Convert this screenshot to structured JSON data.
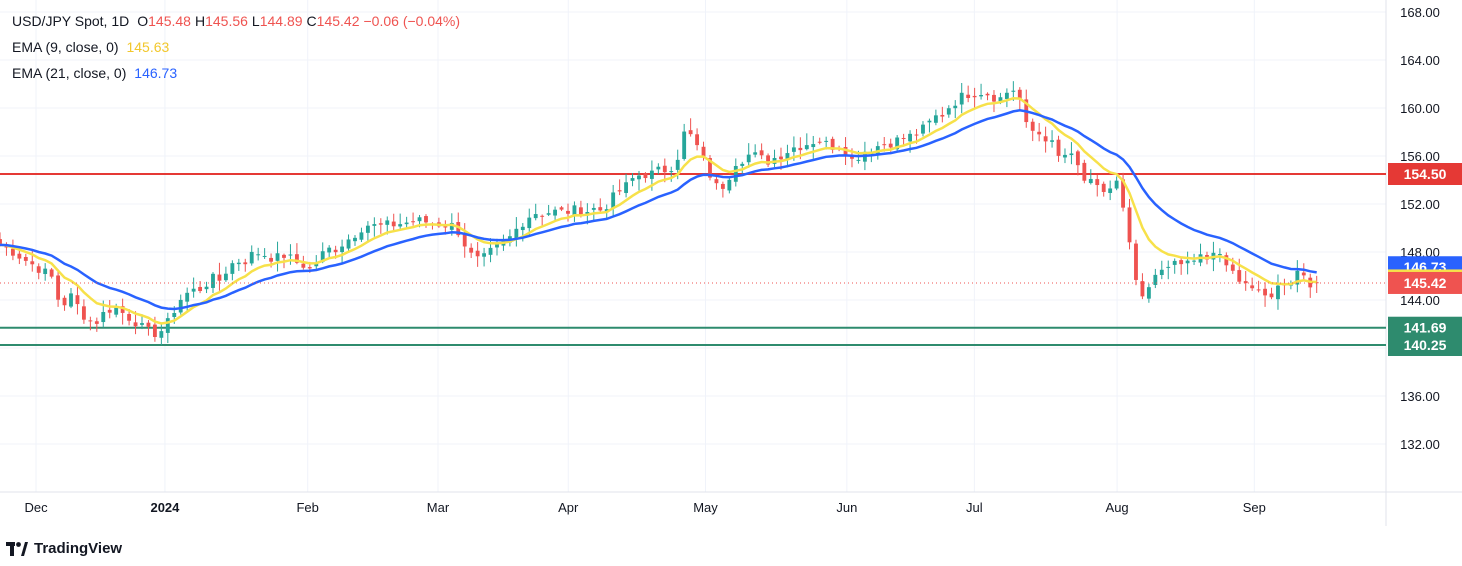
{
  "legend": {
    "symbol": "USD/JPY Spot, 1D",
    "o_label": "O",
    "o": "145.48",
    "h_label": "H",
    "h": "145.56",
    "l_label": "L",
    "l": "144.89",
    "c_label": "C",
    "c": "145.42",
    "change": "−0.06 (−0.04%)",
    "ema9_label": "EMA (9, close, 0)",
    "ema9_value": "145.63",
    "ema21_label": "EMA (21, close, 0)",
    "ema21_value": "146.73"
  },
  "branding": {
    "name": "TradingView"
  },
  "colors": {
    "up": "#26a69a",
    "down": "#ef5350",
    "ema9": "#f7e14a",
    "ema21": "#2962ff",
    "resistance": "#e53935",
    "support": "#2e8b6e",
    "grid": "#f0f3fa"
  },
  "chart_data": {
    "type": "candlestick",
    "ylim": [
      128,
      169
    ],
    "y_ticks": [
      "132.00",
      "136.00",
      "140.00",
      "144.00",
      "148.00",
      "152.00",
      "156.00",
      "160.00",
      "164.00",
      "168.00"
    ],
    "x_ticks": [
      {
        "label": "Dec",
        "t": 0.026
      },
      {
        "label": "2024",
        "t": 0.119
      },
      {
        "label": "Feb",
        "t": 0.222
      },
      {
        "label": "Mar",
        "t": 0.316
      },
      {
        "label": "Apr",
        "t": 0.41
      },
      {
        "label": "May",
        "t": 0.509
      },
      {
        "label": "Jun",
        "t": 0.611
      },
      {
        "label": "Jul",
        "t": 0.703
      },
      {
        "label": "Aug",
        "t": 0.806
      },
      {
        "label": "Sep",
        "t": 0.905
      }
    ],
    "horizontal_levels": [
      {
        "value": 154.5,
        "label": "154.50",
        "kind": "resistance"
      },
      {
        "value": 141.69,
        "label": "141.69",
        "kind": "support"
      },
      {
        "value": 140.25,
        "label": "140.25",
        "kind": "support"
      }
    ],
    "price_tags": [
      {
        "value": 146.73,
        "label": "146.73",
        "kind": "ema21"
      },
      {
        "value": 145.63,
        "label": "145.63",
        "kind": "ema9"
      },
      {
        "value": 145.42,
        "label": "145.42",
        "kind": "last"
      }
    ],
    "last_price": 145.42,
    "close_path": [
      [
        0.0,
        148.6
      ],
      [
        0.01,
        148.0
      ],
      [
        0.02,
        147.2
      ],
      [
        0.03,
        146.5
      ],
      [
        0.038,
        145.8
      ],
      [
        0.044,
        143.2
      ],
      [
        0.05,
        144.5
      ],
      [
        0.056,
        143.5
      ],
      [
        0.062,
        142.5
      ],
      [
        0.068,
        142.0
      ],
      [
        0.074,
        142.8
      ],
      [
        0.082,
        143.5
      ],
      [
        0.09,
        142.8
      ],
      [
        0.098,
        142.2
      ],
      [
        0.104,
        141.5
      ],
      [
        0.11,
        141.2
      ],
      [
        0.116,
        141.4
      ],
      [
        0.122,
        142.2
      ],
      [
        0.128,
        143.8
      ],
      [
        0.134,
        144.5
      ],
      [
        0.14,
        144.8
      ],
      [
        0.146,
        145.0
      ],
      [
        0.152,
        145.8
      ],
      [
        0.158,
        145.6
      ],
      [
        0.164,
        146.6
      ],
      [
        0.17,
        147.3
      ],
      [
        0.176,
        147.2
      ],
      [
        0.182,
        147.8
      ],
      [
        0.188,
        148.0
      ],
      [
        0.194,
        147.6
      ],
      [
        0.2,
        147.5
      ],
      [
        0.206,
        147.8
      ],
      [
        0.212,
        147.2
      ],
      [
        0.218,
        147.0
      ],
      [
        0.224,
        146.5
      ],
      [
        0.23,
        147.5
      ],
      [
        0.236,
        148.2
      ],
      [
        0.242,
        148.3
      ],
      [
        0.248,
        148.8
      ],
      [
        0.254,
        149.3
      ],
      [
        0.26,
        150.0
      ],
      [
        0.266,
        150.3
      ],
      [
        0.272,
        150.1
      ],
      [
        0.278,
        150.2
      ],
      [
        0.284,
        150.3
      ],
      [
        0.29,
        150.4
      ],
      [
        0.296,
        150.5
      ],
      [
        0.302,
        150.6
      ],
      [
        0.308,
        150.5
      ],
      [
        0.314,
        150.4
      ],
      [
        0.32,
        150.3
      ],
      [
        0.326,
        150.2
      ],
      [
        0.332,
        149.6
      ],
      [
        0.338,
        147.9
      ],
      [
        0.344,
        147.3
      ],
      [
        0.35,
        147.5
      ],
      [
        0.356,
        148.2
      ],
      [
        0.362,
        148.6
      ],
      [
        0.368,
        149.2
      ],
      [
        0.374,
        150.1
      ],
      [
        0.38,
        150.9
      ],
      [
        0.386,
        151.3
      ],
      [
        0.392,
        151.2
      ],
      [
        0.398,
        151.4
      ],
      [
        0.404,
        151.3
      ],
      [
        0.41,
        151.4
      ],
      [
        0.416,
        151.5
      ],
      [
        0.422,
        151.4
      ],
      [
        0.428,
        151.6
      ],
      [
        0.434,
        151.5
      ],
      [
        0.44,
        152.2
      ],
      [
        0.446,
        153.0
      ],
      [
        0.452,
        153.5
      ],
      [
        0.458,
        154.3
      ],
      [
        0.464,
        154.5
      ],
      [
        0.47,
        154.5
      ],
      [
        0.476,
        154.8
      ],
      [
        0.482,
        154.9
      ],
      [
        0.488,
        155.6
      ],
      [
        0.494,
        158.0
      ],
      [
        0.5,
        157.5
      ],
      [
        0.506,
        156.0
      ],
      [
        0.512,
        154.5
      ],
      [
        0.518,
        153.2
      ],
      [
        0.524,
        153.8
      ],
      [
        0.53,
        155.5
      ],
      [
        0.536,
        155.8
      ],
      [
        0.542,
        156.2
      ],
      [
        0.548,
        155.8
      ],
      [
        0.554,
        155.6
      ],
      [
        0.56,
        155.9
      ],
      [
        0.566,
        156.3
      ],
      [
        0.572,
        156.7
      ],
      [
        0.578,
        156.9
      ],
      [
        0.584,
        157.1
      ],
      [
        0.59,
        157.4
      ],
      [
        0.596,
        157.0
      ],
      [
        0.602,
        156.8
      ],
      [
        0.608,
        157.0
      ],
      [
        0.614,
        155.6
      ],
      [
        0.62,
        156.1
      ],
      [
        0.626,
        156.6
      ],
      [
        0.632,
        156.8
      ],
      [
        0.638,
        157.0
      ],
      [
        0.644,
        157.2
      ],
      [
        0.65,
        157.4
      ],
      [
        0.656,
        157.6
      ],
      [
        0.662,
        157.9
      ],
      [
        0.668,
        158.4
      ],
      [
        0.674,
        159.2
      ],
      [
        0.68,
        159.5
      ],
      [
        0.686,
        160.3
      ],
      [
        0.692,
        160.8
      ],
      [
        0.698,
        161.2
      ],
      [
        0.704,
        161.3
      ],
      [
        0.71,
        161.4
      ],
      [
        0.716,
        161.0
      ],
      [
        0.722,
        160.8
      ],
      [
        0.728,
        161.5
      ],
      [
        0.734,
        161.6
      ],
      [
        0.74,
        158.5
      ],
      [
        0.746,
        158.0
      ],
      [
        0.752,
        157.8
      ],
      [
        0.758,
        157.2
      ],
      [
        0.764,
        155.8
      ],
      [
        0.77,
        156.2
      ],
      [
        0.776,
        155.5
      ],
      [
        0.782,
        154.0
      ],
      [
        0.788,
        153.6
      ],
      [
        0.794,
        153.0
      ],
      [
        0.8,
        153.2
      ],
      [
        0.806,
        153.8
      ],
      [
        0.812,
        150.5
      ],
      [
        0.818,
        146.3
      ],
      [
        0.824,
        143.8
      ],
      [
        0.83,
        145.2
      ],
      [
        0.836,
        146.2
      ],
      [
        0.842,
        147.2
      ],
      [
        0.848,
        146.8
      ],
      [
        0.854,
        147.0
      ],
      [
        0.86,
        147.3
      ],
      [
        0.866,
        147.6
      ],
      [
        0.872,
        147.0
      ],
      [
        0.878,
        148.6
      ],
      [
        0.884,
        146.6
      ],
      [
        0.89,
        146.2
      ],
      [
        0.896,
        145.8
      ],
      [
        0.902,
        145.2
      ],
      [
        0.908,
        144.4
      ],
      [
        0.914,
        144.2
      ],
      [
        0.92,
        144.8
      ],
      [
        0.926,
        145.5
      ],
      [
        0.932,
        145.6
      ],
      [
        0.938,
        146.8
      ],
      [
        0.944,
        145.5
      ],
      [
        0.95,
        145.42
      ]
    ],
    "series": [
      {
        "name": "EMA (9, close, 0)",
        "kind": "ema9",
        "period": 9
      },
      {
        "name": "EMA (21, close, 0)",
        "kind": "ema21",
        "period": 21
      }
    ]
  }
}
